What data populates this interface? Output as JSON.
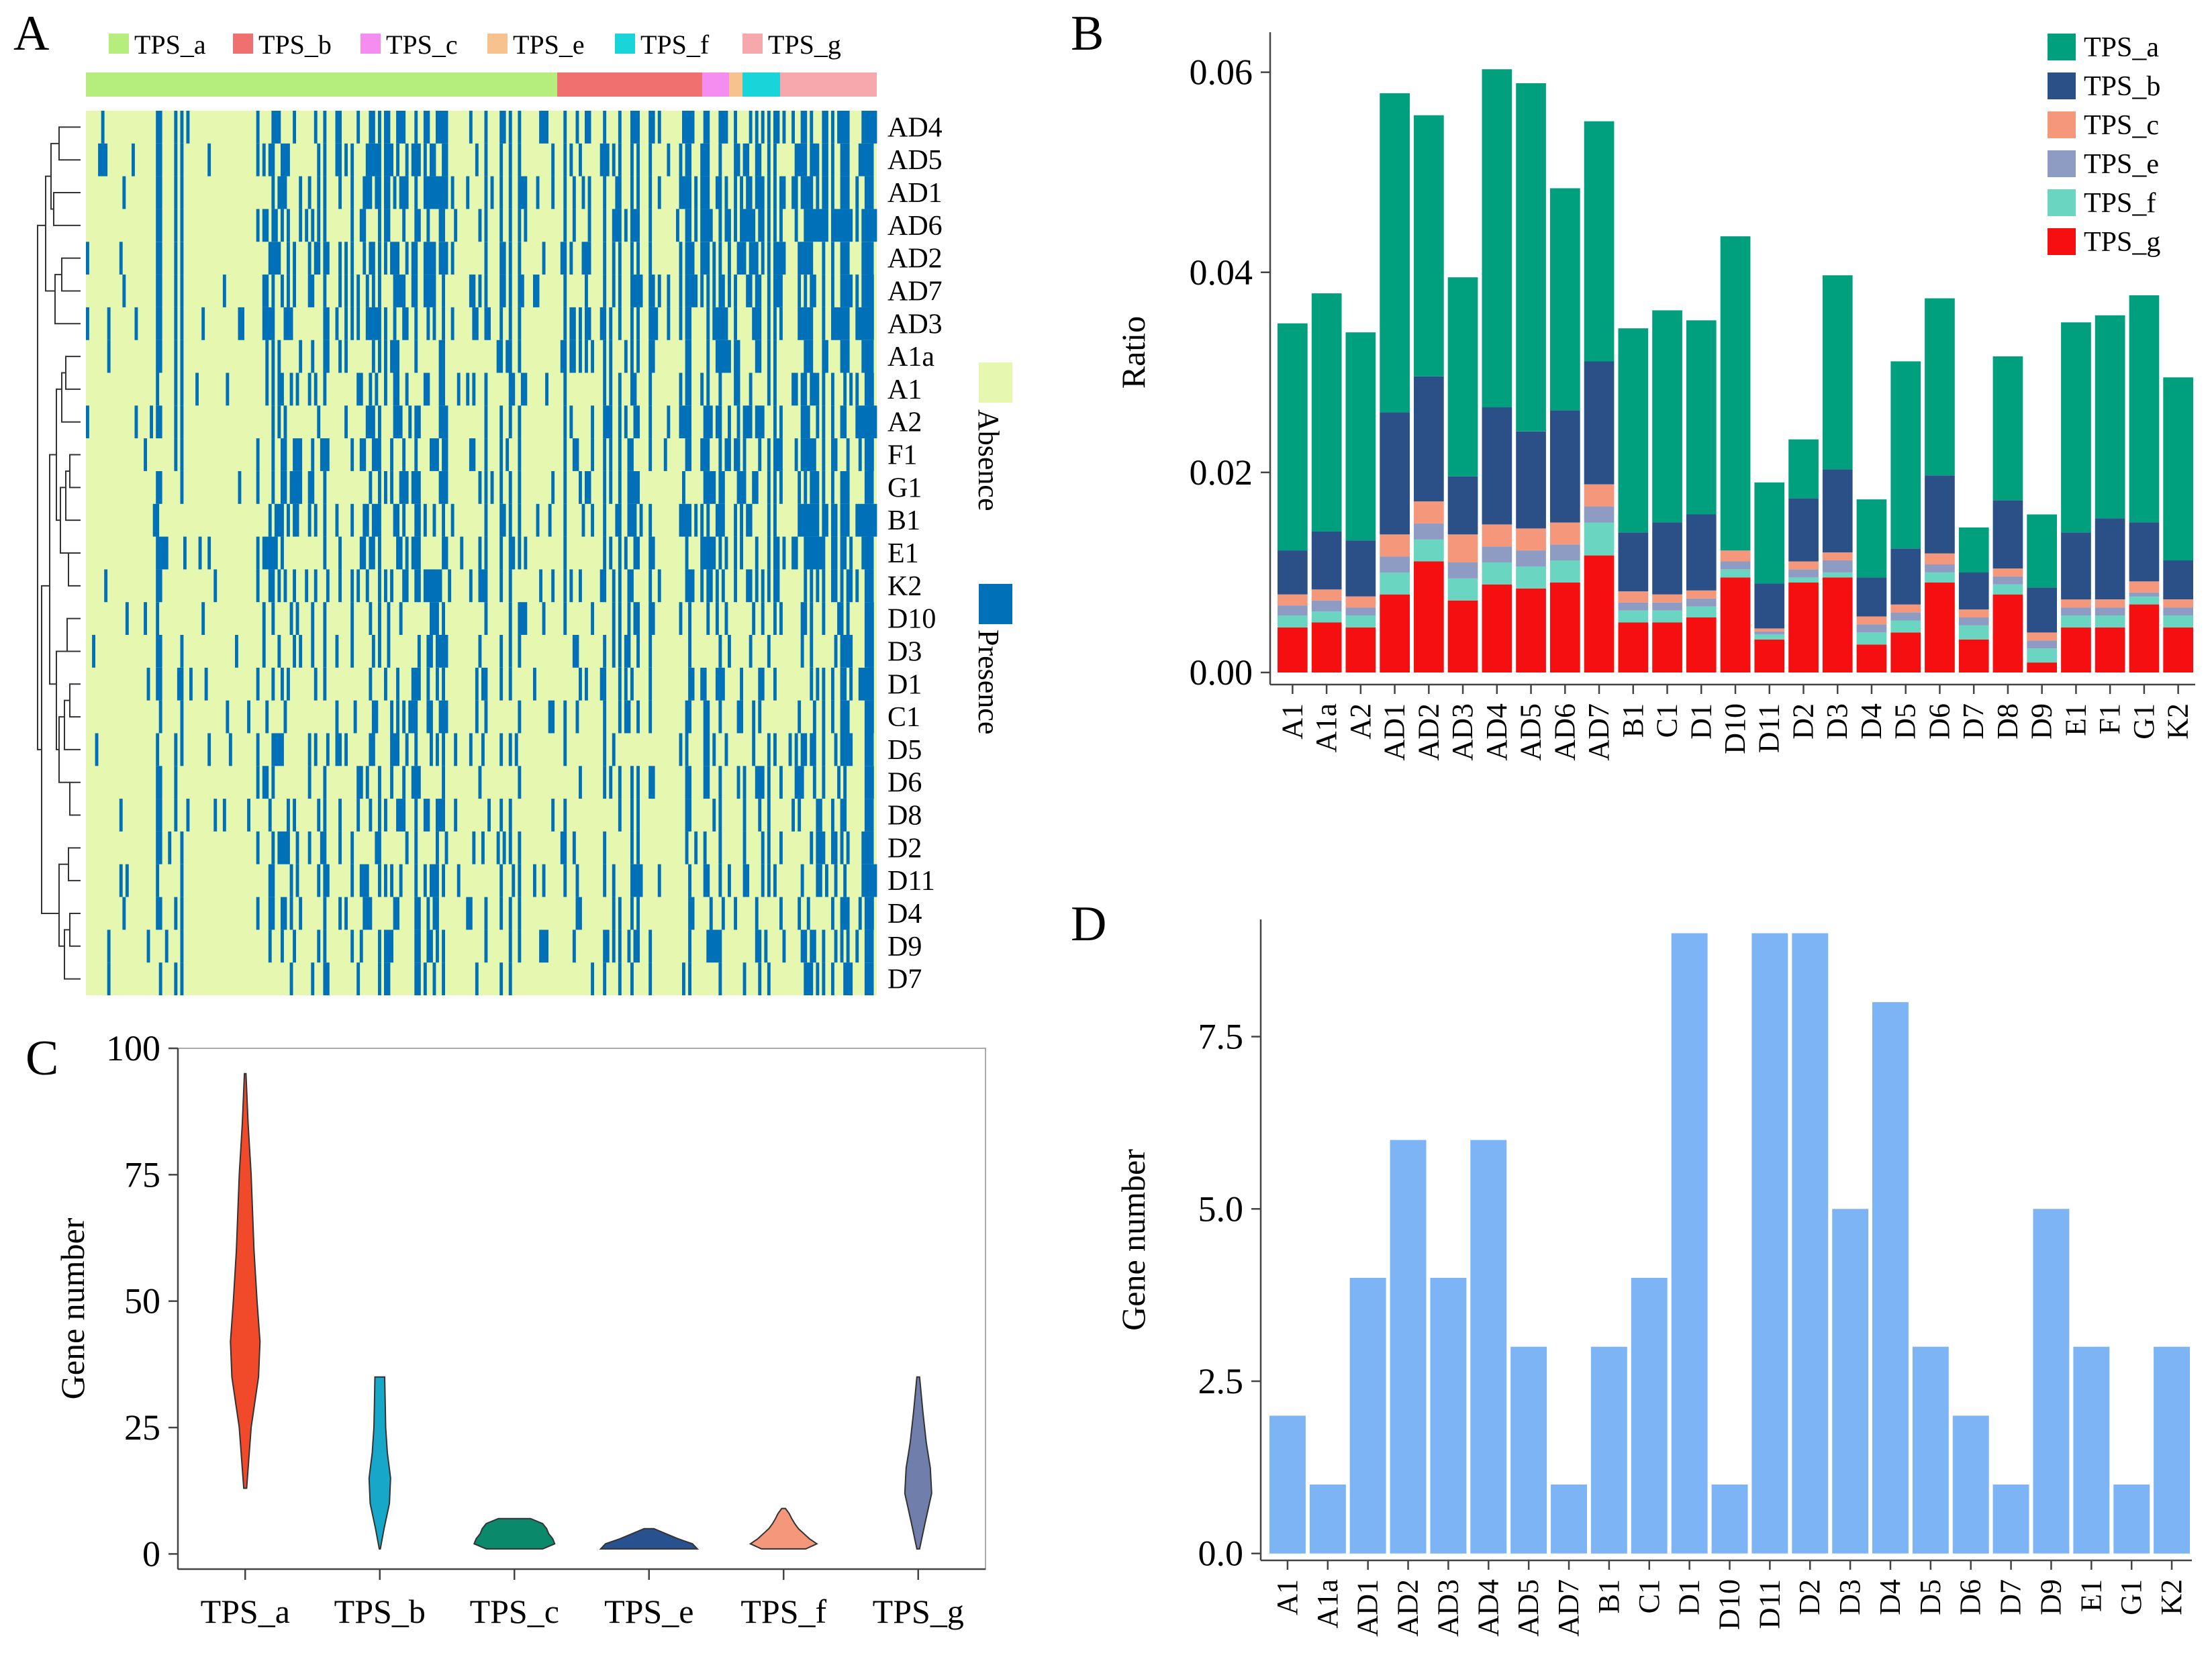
{
  "panels": {
    "a": "A",
    "b": "B",
    "c": "C",
    "d": "D"
  },
  "colors": {
    "absence": "#e6f7b0",
    "presence": "#0070b8",
    "TPS_a_A": "#b6ee7e",
    "TPS_b_A": "#f07070",
    "TPS_c_A": "#f58cf0",
    "TPS_e_A": "#f7c28e",
    "TPS_f_A": "#19d4d8",
    "TPS_g_A": "#f6a8ac",
    "B_TPS_a": "#009f7e",
    "B_TPS_b": "#2b5088",
    "B_TPS_c": "#f5977a",
    "B_TPS_e": "#8e9cc4",
    "B_TPS_f": "#6ad5c0",
    "B_TPS_g": "#f50f10",
    "D_bar": "#7cb4f6"
  },
  "chart_data": [
    {
      "id": "A",
      "type": "heatmap",
      "title": "",
      "legend_top": [
        "TPS_a",
        "TPS_b",
        "TPS_c",
        "TPS_e",
        "TPS_f",
        "TPS_g"
      ],
      "rows": [
        "AD4",
        "AD5",
        "AD1",
        "AD6",
        "AD2",
        "AD7",
        "AD3",
        "A1a",
        "A1",
        "A2",
        "F1",
        "G1",
        "B1",
        "E1",
        "K2",
        "D10",
        "D3",
        "D1",
        "C1",
        "D5",
        "D6",
        "D8",
        "D2",
        "D11",
        "D4",
        "D9",
        "D7"
      ],
      "legend_side": [
        "Absence",
        "Presence"
      ]
    },
    {
      "id": "B",
      "type": "bar",
      "stacked": true,
      "ylabel": "Ratio",
      "ylim": [
        0,
        0.064
      ],
      "yticks": [
        "0.00",
        "0.02",
        "0.04",
        "0.06"
      ],
      "categories": [
        "A1",
        "A1a",
        "A2",
        "AD1",
        "AD2",
        "AD3",
        "AD4",
        "AD5",
        "AD6",
        "AD7",
        "B1",
        "C1",
        "D1",
        "D10",
        "D11",
        "D2",
        "D3",
        "D4",
        "D5",
        "D6",
        "D7",
        "D8",
        "D9",
        "E1",
        "F1",
        "G1",
        "K2"
      ],
      "series": [
        {
          "name": "TPS_g",
          "values": [
            0.0045,
            0.005,
            0.0045,
            0.0078,
            0.0111,
            0.0072,
            0.0088,
            0.0084,
            0.009,
            0.0117,
            0.005,
            0.005,
            0.0055,
            0.0095,
            0.0033,
            0.009,
            0.0095,
            0.0028,
            0.004,
            0.009,
            0.0033,
            0.0078,
            0.001,
            0.0045,
            0.0045,
            0.0068,
            0.0045
          ]
        },
        {
          "name": "TPS_f",
          "values": [
            0.0012,
            0.0011,
            0.0012,
            0.0022,
            0.0022,
            0.0022,
            0.0022,
            0.0022,
            0.0022,
            0.0033,
            0.0012,
            0.0012,
            0.0011,
            0.0008,
            0.0005,
            0.0005,
            0.0005,
            0.0012,
            0.0012,
            0.001,
            0.0014,
            0.001,
            0.0014,
            0.0012,
            0.0012,
            0.0008,
            0.0012
          ]
        },
        {
          "name": "TPS_e",
          "values": [
            0.001,
            0.0011,
            0.0008,
            0.0016,
            0.0016,
            0.0016,
            0.0016,
            0.0016,
            0.0016,
            0.0016,
            0.0008,
            0.0008,
            0.0008,
            0.0008,
            0.0003,
            0.0008,
            0.0012,
            0.0008,
            0.0008,
            0.0008,
            0.0008,
            0.0008,
            0.0008,
            0.0008,
            0.0008,
            0.0004,
            0.0008
          ]
        },
        {
          "name": "TPS_c",
          "values": [
            0.0011,
            0.0011,
            0.0011,
            0.0022,
            0.0022,
            0.0028,
            0.0022,
            0.0022,
            0.0022,
            0.0022,
            0.0011,
            0.0008,
            0.0008,
            0.0011,
            0.0003,
            0.0008,
            0.0008,
            0.0008,
            0.0008,
            0.0011,
            0.0008,
            0.0008,
            0.0008,
            0.0008,
            0.0008,
            0.0011,
            0.0008
          ]
        },
        {
          "name": "TPS_b",
          "values": [
            0.0044,
            0.0058,
            0.0056,
            0.0122,
            0.0125,
            0.0058,
            0.0117,
            0.0097,
            0.0112,
            0.0123,
            0.0059,
            0.0072,
            0.0076,
            0,
            0.0045,
            0.0063,
            0.0083,
            0.0039,
            0.0056,
            0.0078,
            0.0037,
            0.0068,
            0.0045,
            0.0067,
            0.0081,
            0.0059,
            0.0039
          ]
        },
        {
          "name": "TPS_a",
          "values": [
            0.0227,
            0.0238,
            0.0208,
            0.0319,
            0.0261,
            0.0199,
            0.0338,
            0.0348,
            0.0222,
            0.024,
            0.0204,
            0.0212,
            0.0194,
            0.0314,
            0.0101,
            0.0059,
            0.0194,
            0.0078,
            0.0187,
            0.0177,
            0.0045,
            0.0144,
            0.0073,
            0.021,
            0.0203,
            0.0227,
            0.0183
          ]
        }
      ],
      "legend": [
        "TPS_a",
        "TPS_b",
        "TPS_c",
        "TPS_e",
        "TPS_f",
        "TPS_g"
      ],
      "legend_position": "top-right"
    },
    {
      "id": "C",
      "type": "violin",
      "ylabel": "Gene number",
      "ylim": [
        -3,
        100
      ],
      "yticks": [
        "0",
        "25",
        "50",
        "75",
        "100"
      ],
      "categories": [
        "TPS_a",
        "TPS_b",
        "TPS_c",
        "TPS_e",
        "TPS_f",
        "TPS_g"
      ],
      "violins": [
        {
          "name": "TPS_a",
          "min": 13,
          "max": 95,
          "shape": [
            [
              13,
              0.1
            ],
            [
              25,
              0.4
            ],
            [
              35,
              0.9
            ],
            [
              42,
              1.0
            ],
            [
              50,
              0.8
            ],
            [
              60,
              0.6
            ],
            [
              75,
              0.4
            ],
            [
              85,
              0.2
            ],
            [
              95,
              0.05
            ]
          ],
          "color": "#f04a2a"
        },
        {
          "name": "TPS_b",
          "min": 1,
          "max": 35,
          "shape": [
            [
              1,
              0.05
            ],
            [
              5,
              0.4
            ],
            [
              10,
              0.9
            ],
            [
              15,
              1.0
            ],
            [
              20,
              0.7
            ],
            [
              25,
              0.55
            ],
            [
              30,
              0.5
            ],
            [
              35,
              0.45
            ]
          ],
          "color": "#17a7c9"
        },
        {
          "name": "TPS_c",
          "min": 1,
          "max": 7,
          "shape": [
            [
              1,
              0.7
            ],
            [
              2,
              1.0
            ],
            [
              3,
              0.95
            ],
            [
              4,
              0.85
            ],
            [
              5,
              0.8
            ],
            [
              6,
              0.7
            ],
            [
              7,
              0.4
            ]
          ],
          "color": "#0a8a6a"
        },
        {
          "name": "TPS_e",
          "min": 1,
          "max": 5,
          "shape": [
            [
              1,
              1.0
            ],
            [
              2,
              0.9
            ],
            [
              3,
              0.6
            ],
            [
              4,
              0.35
            ],
            [
              5,
              0.1
            ]
          ],
          "color": "#27528f"
        },
        {
          "name": "TPS_f",
          "min": 1,
          "max": 9,
          "shape": [
            [
              1,
              0.6
            ],
            [
              2,
              0.9
            ],
            [
              3,
              0.7
            ],
            [
              4,
              0.55
            ],
            [
              5,
              0.4
            ],
            [
              6,
              0.3
            ],
            [
              7,
              0.22
            ],
            [
              8,
              0.15
            ],
            [
              9,
              0.05
            ]
          ],
          "color": "#f5977a"
        },
        {
          "name": "TPS_g",
          "min": 1,
          "max": 35,
          "shape": [
            [
              1,
              0.1
            ],
            [
              6,
              0.5
            ],
            [
              12,
              1.0
            ],
            [
              17,
              0.9
            ],
            [
              22,
              0.6
            ],
            [
              28,
              0.35
            ],
            [
              35,
              0.1
            ]
          ],
          "color": "#6f7eaa"
        }
      ]
    },
    {
      "id": "D",
      "type": "bar",
      "ylabel": "Gene number",
      "ylim": [
        -0.1,
        9.2
      ],
      "yticks": [
        "0.0",
        "2.5",
        "5.0",
        "7.5"
      ],
      "categories": [
        "A1",
        "A1a",
        "AD1",
        "AD2",
        "AD3",
        "AD4",
        "AD5",
        "AD7",
        "B1",
        "C1",
        "D1",
        "D10",
        "D11",
        "D2",
        "D3",
        "D4",
        "D5",
        "D6",
        "D7",
        "D9",
        "E1",
        "G1",
        "K2"
      ],
      "values": [
        2,
        1,
        4,
        6,
        4,
        6,
        3,
        1,
        3,
        4,
        9,
        1,
        9,
        9,
        5,
        8,
        3,
        2,
        1,
        5,
        3,
        1,
        3
      ]
    }
  ]
}
